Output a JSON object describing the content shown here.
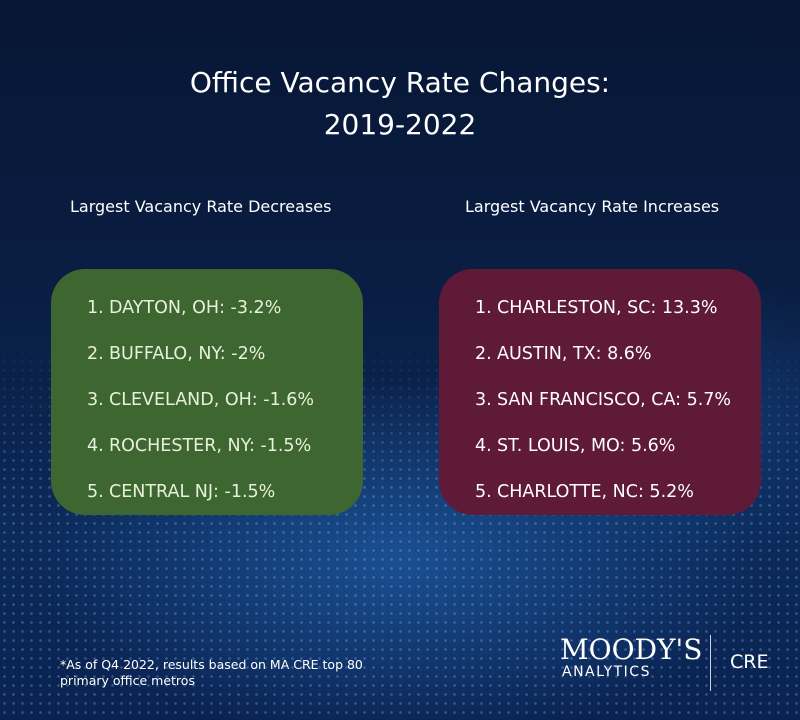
{
  "title_line1": "Office Vacancy Rate Changes:",
  "title_line2": "2019-2022",
  "decreases": {
    "heading": "Largest Vacancy Rate Decreases",
    "color": "#3d6630",
    "items": [
      {
        "n": "1.",
        "text": "DAYTON, OH: -3.2%"
      },
      {
        "n": "2.",
        "text": "BUFFALO, NY: -2%"
      },
      {
        "n": "3.",
        "text": "CLEVELAND, OH: -1.6%"
      },
      {
        "n": "4.",
        "text": "ROCHESTER, NY: -1.5%"
      },
      {
        "n": "5.",
        "text": "CENTRAL NJ: -1.5%"
      }
    ]
  },
  "increases": {
    "heading": "Largest Vacancy Rate Increases",
    "color": "#5e1a36",
    "items": [
      {
        "n": "1.",
        "text": "CHARLESTON, SC: 13.3%"
      },
      {
        "n": "2.",
        "text": "AUSTIN, TX: 8.6%"
      },
      {
        "n": "3.",
        "text": "SAN FRANCISCO, CA: 5.7%"
      },
      {
        "n": "4.",
        "text": "ST. LOUIS, MO: 5.6%"
      },
      {
        "n": "5.",
        "text": "CHARLOTTE, NC: 5.2%"
      }
    ]
  },
  "footnote": "*As of Q4 2022, results based on MA CRE top 80 primary office metros",
  "logo": {
    "brand": "MOODY'S",
    "sub": "ANALYTICS",
    "product": "CRE"
  }
}
